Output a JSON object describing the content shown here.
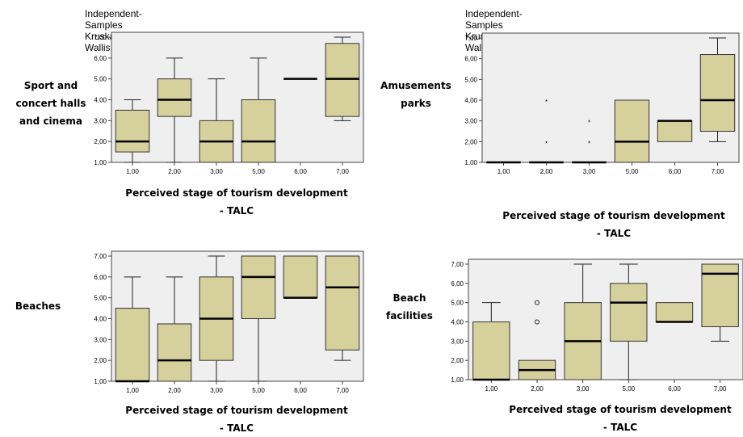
{
  "chart_data": [
    {
      "type": "box",
      "title": "Independent-Samples Kruskal-Wallis Test",
      "row_label": [
        "Sport and",
        "concert halls",
        "and cinema"
      ],
      "xlabel": [
        "Perceived stage of tourism development",
        "- TALC"
      ],
      "ylim": [
        1,
        7
      ],
      "yticks": [
        "1,00",
        "2,00",
        "3,00",
        "4,00",
        "5,00",
        "6,00",
        "7,00"
      ],
      "categories": [
        "1,00",
        "2,00",
        "3,00",
        "5,00",
        "6,00",
        "7,00"
      ],
      "colors": {
        "box": "#d6d09c",
        "plot_bg": "#efefef",
        "median": "#000000"
      },
      "boxes": [
        {
          "min": 1,
          "q1": 1.5,
          "median": 2,
          "q3": 3.5,
          "max": 4
        },
        {
          "min": 1,
          "q1": 3.2,
          "median": 4,
          "q3": 5,
          "max": 6
        },
        {
          "min": 1,
          "q1": 1,
          "median": 2,
          "q3": 3,
          "max": 5
        },
        {
          "min": 1,
          "q1": 1,
          "median": 2,
          "q3": 4,
          "max": 6
        },
        {
          "min": 5,
          "q1": 5,
          "median": 5,
          "q3": 5,
          "max": 5
        },
        {
          "min": 3,
          "q1": 3.2,
          "median": 5,
          "q3": 6.7,
          "max": 7
        }
      ],
      "outliers": []
    },
    {
      "type": "box",
      "title": "Independent-Samples Kruskal-Wallis Test",
      "row_label": [
        "Amusements",
        "parks"
      ],
      "xlabel": [
        "Perceived stage of tourism development",
        "- TALC"
      ],
      "ylim": [
        1,
        7
      ],
      "yticks": [
        "1,00",
        "2,00",
        "3,00",
        "4,00",
        "5,00",
        "6,00",
        "7,00"
      ],
      "categories": [
        "1,00",
        "2,00",
        "3,00",
        "5,00",
        "6,00",
        "7,00"
      ],
      "colors": {
        "box": "#d6d09c",
        "plot_bg": "#efefef",
        "median": "#000000"
      },
      "boxes": [
        {
          "min": 1,
          "q1": 1,
          "median": 1,
          "q3": 1,
          "max": 1
        },
        {
          "min": 1,
          "q1": 1,
          "median": 1,
          "q3": 1,
          "max": 1
        },
        {
          "min": 1,
          "q1": 1,
          "median": 1,
          "q3": 1,
          "max": 1
        },
        {
          "min": 1,
          "q1": 1,
          "median": 2,
          "q3": 4,
          "max": 4
        },
        {
          "min": 2,
          "q1": 2,
          "median": 3,
          "q3": 3,
          "max": 3
        },
        {
          "min": 2,
          "q1": 2.5,
          "median": 4,
          "q3": 6.2,
          "max": 7
        }
      ],
      "outliers": [
        {
          "category": 1,
          "value": 4,
          "marker": "star"
        },
        {
          "category": 1,
          "value": 2,
          "marker": "star"
        },
        {
          "category": 2,
          "value": 3,
          "marker": "star"
        },
        {
          "category": 2,
          "value": 2,
          "marker": "star"
        }
      ]
    },
    {
      "type": "box",
      "title": "",
      "row_label": [
        "Beaches"
      ],
      "xlabel": [
        "Perceived stage of tourism development",
        "- TALC"
      ],
      "ylim": [
        1,
        7
      ],
      "yticks": [
        "1,00",
        "2,00",
        "3,00",
        "4,00",
        "5,00",
        "6,00",
        "7,00"
      ],
      "categories": [
        "1,00",
        "2,00",
        "3,00",
        "5,00",
        "6,00",
        "7,00"
      ],
      "colors": {
        "box": "#d6d09c",
        "plot_bg": "#efefef",
        "median": "#000000"
      },
      "boxes": [
        {
          "min": 1,
          "q1": 1,
          "median": 1,
          "q3": 4.5,
          "max": 6
        },
        {
          "min": 1,
          "q1": 1,
          "median": 2,
          "q3": 3.75,
          "max": 6
        },
        {
          "min": 1,
          "q1": 2,
          "median": 4,
          "q3": 6,
          "max": 7
        },
        {
          "min": 1,
          "q1": 4,
          "median": 6,
          "q3": 7,
          "max": 7
        },
        {
          "min": 5,
          "q1": 5,
          "median": 5,
          "q3": 7,
          "max": 7
        },
        {
          "min": 2,
          "q1": 2.5,
          "median": 5.5,
          "q3": 7,
          "max": 7
        }
      ],
      "outliers": []
    },
    {
      "type": "box",
      "title": "",
      "row_label": [
        "Beach",
        "facilities"
      ],
      "xlabel": [
        "Perceived stage of tourism development",
        "- TALC"
      ],
      "ylim": [
        1,
        7
      ],
      "yticks": [
        "1,00",
        "2,00",
        "3,00",
        "4,00",
        "5,00",
        "6,00",
        "7,00"
      ],
      "categories": [
        "1,00",
        "2,00",
        "3,00",
        "5,00",
        "6,00",
        "7,00"
      ],
      "colors": {
        "box": "#d6d09c",
        "plot_bg": "#efefef",
        "median": "#000000"
      },
      "boxes": [
        {
          "min": 1,
          "q1": 1,
          "median": 1,
          "q3": 4,
          "max": 5
        },
        {
          "min": 1,
          "q1": 1,
          "median": 1.5,
          "q3": 2,
          "max": 2
        },
        {
          "min": 1,
          "q1": 1,
          "median": 3,
          "q3": 5,
          "max": 7
        },
        {
          "min": 1,
          "q1": 3,
          "median": 5,
          "q3": 6,
          "max": 7
        },
        {
          "min": 4,
          "q1": 4,
          "median": 4,
          "q3": 5,
          "max": 5
        },
        {
          "min": 3,
          "q1": 3.75,
          "median": 6.5,
          "q3": 7,
          "max": 7
        }
      ],
      "outliers": [
        {
          "category": 1,
          "value": 5,
          "marker": "circle"
        },
        {
          "category": 1,
          "value": 4,
          "marker": "circle"
        }
      ]
    }
  ]
}
